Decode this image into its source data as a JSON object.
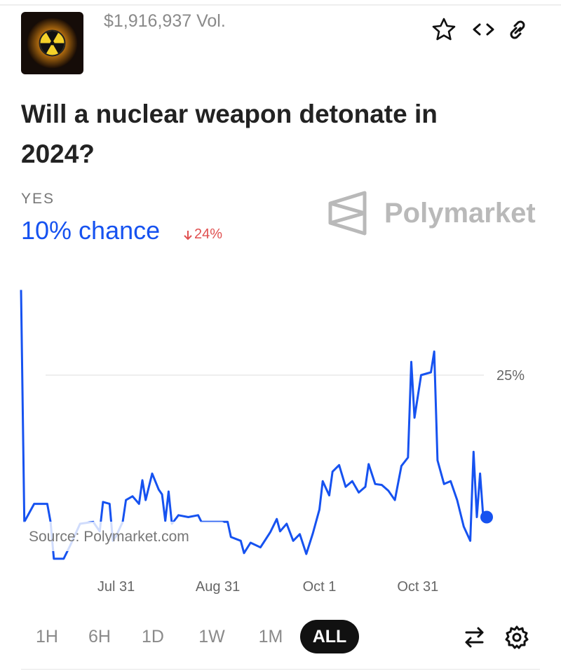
{
  "header": {
    "volume": "$1,916,937 Vol.",
    "title": "Will a nuclear weapon detonate in 2024?",
    "outcome": "YES",
    "chance": "10% chance",
    "change": "24%",
    "brand": "Polymarket"
  },
  "chart_data": {
    "type": "line",
    "source": "Source: Polymarket.com",
    "color": "#1652f0",
    "x": [
      "Jul 2",
      "Jul 3",
      "Jul 6",
      "Jul 10",
      "Jul 11",
      "Jul 12",
      "Jul 15",
      "Jul 17",
      "Jul 20",
      "Jul 24",
      "Jul 26",
      "Jul 27",
      "Jul 29",
      "Jul 30",
      "Jul 31",
      "Aug 2",
      "Aug 3",
      "Aug 5",
      "Aug 7",
      "Aug 8",
      "Aug 9",
      "Aug 11",
      "Aug 13",
      "Aug 14",
      "Aug 15",
      "Aug 16",
      "Aug 17",
      "Aug 19",
      "Aug 22",
      "Aug 25",
      "Aug 26",
      "Aug 30",
      "Sep 3",
      "Sep 4",
      "Sep 7",
      "Sep 8",
      "Sep 10",
      "Sep 13",
      "Sep 16",
      "Sep 18",
      "Sep 19",
      "Sep 21",
      "Sep 23",
      "Sep 25",
      "Sep 27",
      "Sep 29",
      "Oct 1",
      "Oct 2",
      "Oct 4",
      "Oct 5",
      "Oct 7",
      "Oct 9",
      "Oct 11",
      "Oct 13",
      "Oct 15",
      "Oct 16",
      "Oct 18",
      "Oct 20",
      "Oct 22",
      "Oct 24",
      "Oct 26",
      "Oct 28",
      "Oct 29",
      "Oct 30",
      "Nov 1",
      "Nov 4",
      "Nov 5",
      "Nov 6",
      "Nov 8",
      "Nov 10",
      "Nov 12",
      "Nov 14",
      "Nov 16",
      "Nov 17",
      "Nov 18",
      "Nov 19",
      "Nov 20",
      "Nov 21"
    ],
    "values": [
      34,
      9.5,
      11.4,
      11.4,
      9.5,
      5.6,
      5.6,
      7,
      9.3,
      9.5,
      8.5,
      11.6,
      11.4,
      7.5,
      8,
      9.5,
      11.8,
      12.2,
      11.4,
      13.9,
      11.8,
      14.6,
      12.9,
      12.4,
      9.6,
      12.7,
      9.3,
      10.2,
      10,
      10.2,
      9.5,
      9.5,
      9.5,
      7.9,
      7.5,
      6.2,
      7.3,
      6.8,
      8.4,
      9.8,
      8.5,
      9.3,
      7.5,
      8.2,
      6.1,
      8.3,
      10.8,
      13.8,
      12.3,
      14.8,
      15.5,
      13.2,
      13.8,
      12.6,
      13.2,
      15.6,
      13.5,
      13.4,
      12.8,
      11.8,
      15.4,
      16.3,
      26.4,
      20.5,
      25,
      25.3,
      27.5,
      16,
      13.5,
      13.8,
      11.8,
      9,
      7.5,
      16.9,
      10,
      14.6,
      9.8,
      10
    ],
    "xlim": [
      "Jul 2",
      "Nov 21"
    ],
    "xticks": [
      "Jul 31",
      "Aug 31",
      "Oct 1",
      "Oct 31"
    ],
    "ylim": [
      5,
      35
    ],
    "yticks": [
      {
        "value": 25,
        "label": "25%"
      }
    ],
    "grid": true
  },
  "controls": {
    "ranges": [
      "1H",
      "6H",
      "1D",
      "1W",
      "1M",
      "ALL"
    ],
    "active": "ALL"
  }
}
